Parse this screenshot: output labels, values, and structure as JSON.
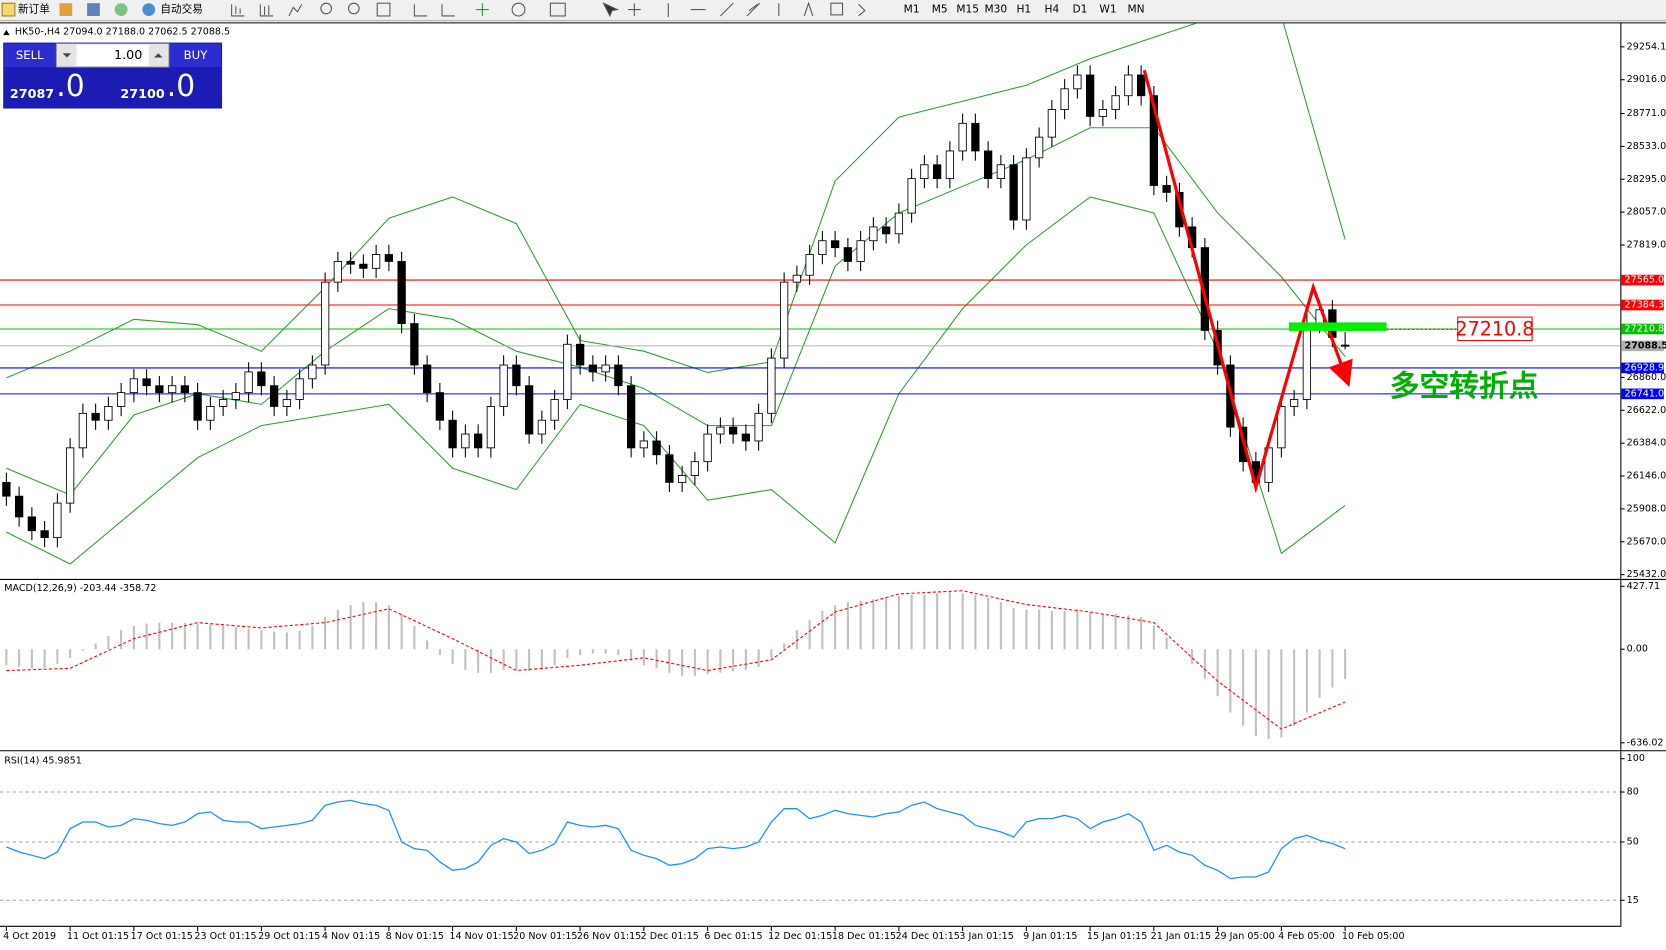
{
  "toolbar": {
    "new_order": "新订单",
    "auto_trading": "自动交易",
    "timeframes": [
      "M1",
      "M5",
      "M15",
      "M30",
      "H1",
      "H4",
      "D1",
      "W1",
      "MN"
    ]
  },
  "trade_panel": {
    "sell": "SELL",
    "buy": "BUY",
    "lots": "1.00",
    "sell_price": "27087",
    "sell_price_big": ".0",
    "buy_price": "27100",
    "buy_price_big": ".0"
  },
  "chart_data": [
    {
      "type": "candlestick",
      "title": "HK50-,H4  27094.0 27188.0 27062.5 27088.5",
      "annotation": "多空转折点",
      "xlim": [
        0,
        105
      ],
      "xticks": [
        {
          "value": 0,
          "label": "4 Oct 2019"
        },
        {
          "value": 5,
          "label": "11 Oct 01:15"
        },
        {
          "value": 10,
          "label": "17 Oct 01:15"
        },
        {
          "value": 15,
          "label": "23 Oct 01:15"
        },
        {
          "value": 20,
          "label": "29 Oct 01:15"
        },
        {
          "value": 25,
          "label": "4 Nov 01:15"
        },
        {
          "value": 30,
          "label": "8 Nov 01:15"
        },
        {
          "value": 35,
          "label": "14 Nov 01:15"
        },
        {
          "value": 40,
          "label": "20 Nov 01:15"
        },
        {
          "value": 45,
          "label": "26 Nov 01:15"
        },
        {
          "value": 50,
          "label": "2 Dec 01:15"
        },
        {
          "value": 55,
          "label": "6 Dec 01:15"
        },
        {
          "value": 60,
          "label": "12 Dec 01:15"
        },
        {
          "value": 65,
          "label": "18 Dec 01:15"
        },
        {
          "value": 70,
          "label": "24 Dec 01:15"
        },
        {
          "value": 75,
          "label": "3 Jan 01:15"
        },
        {
          "value": 80,
          "label": "9 Jan 01:15"
        },
        {
          "value": 85,
          "label": "15 Jan 01:15"
        },
        {
          "value": 90,
          "label": "21 Jan 01:15"
        },
        {
          "value": 95,
          "label": "29 Jan 05:00"
        },
        {
          "value": 100,
          "label": "4 Feb 05:00"
        },
        {
          "value": 105,
          "label": "10 Feb 05:00"
        }
      ],
      "ylim": [
        25432.0,
        29254.1
      ],
      "yticks": [
        29254.1,
        {
          "value": 29016,
          "label": "29016.0"
        },
        {
          "value": 28771,
          "label": "28771.0"
        },
        {
          "value": 28533,
          "label": "28533.0"
        },
        {
          "value": 28295,
          "label": "28295.0"
        },
        {
          "value": 28057,
          "label": "28057.0"
        },
        {
          "value": 27819,
          "label": "27819.0"
        },
        {
          "value": 26860,
          "label": "26860.0"
        },
        {
          "value": 26622,
          "label": "26622.0"
        },
        {
          "value": 26384,
          "label": "26384.0"
        },
        {
          "value": 26146,
          "label": "26146.0"
        },
        {
          "value": 25908,
          "label": "25908.0"
        },
        {
          "value": 25670,
          "label": "25670.0"
        },
        {
          "value": 25432,
          "label": "25432.0"
        }
      ],
      "up_color": "#ffffff",
      "down_color": "#000000",
      "open": [
        26100,
        26000,
        25850,
        25750,
        25700,
        25950,
        26350,
        26600,
        26550,
        26650,
        26750,
        26850,
        26800,
        26750,
        26800,
        26750,
        26550,
        26650,
        26700,
        26750,
        26900,
        26800,
        26650,
        26700,
        26850,
        26950,
        27550,
        27700,
        27680,
        27650,
        27750,
        27700,
        27250,
        26950,
        26750,
        26550,
        26350,
        26450,
        26350,
        26650,
        26950,
        26800,
        26450,
        26550,
        26700,
        27100,
        26950,
        26900,
        26950,
        26800,
        26350,
        26400,
        26300,
        26100,
        26150,
        26250,
        26450,
        26500,
        26450,
        26400,
        26600,
        27000,
        27550,
        27600,
        27750,
        27850,
        27800,
        27700,
        27850,
        27950,
        27900,
        28050,
        28300,
        28400,
        28300,
        28500,
        28700,
        28500,
        28300,
        28400,
        28000,
        28450,
        28600,
        28800,
        28950,
        29050,
        28750,
        28800,
        28900,
        29050,
        28900,
        28250,
        28200,
        27950,
        27800,
        27200,
        26950,
        26500,
        26250,
        26100,
        26350,
        26650,
        26700,
        27250,
        27350,
        27094.0
      ],
      "high": [
        26170,
        26070,
        25920,
        25820,
        26020,
        26420,
        26670,
        26670,
        26720,
        26820,
        26920,
        26920,
        26870,
        26870,
        26870,
        26820,
        26720,
        26770,
        26820,
        26970,
        26970,
        26870,
        26770,
        26920,
        27020,
        27620,
        27770,
        27770,
        27750,
        27820,
        27820,
        27770,
        27320,
        27020,
        26820,
        26620,
        26520,
        26520,
        26720,
        27020,
        27020,
        26870,
        26620,
        26770,
        27170,
        27170,
        27020,
        27020,
        27020,
        26870,
        26470,
        26470,
        26370,
        26220,
        26320,
        26520,
        26570,
        26570,
        26520,
        26670,
        27070,
        27620,
        27670,
        27820,
        27920,
        27920,
        27870,
        27920,
        28020,
        28020,
        28120,
        28370,
        28470,
        28470,
        28570,
        28770,
        28770,
        28570,
        28470,
        28470,
        28520,
        28670,
        28870,
        29020,
        29120,
        29120,
        28870,
        28970,
        29120,
        29120,
        28970,
        28320,
        28270,
        28020,
        27870,
        27270,
        27020,
        26570,
        26320,
        26420,
        26720,
        26770,
        27320,
        27420,
        27420,
        27188.0
      ],
      "low": [
        25930,
        25780,
        25680,
        25630,
        25630,
        25880,
        26280,
        26480,
        26480,
        26580,
        26680,
        26730,
        26680,
        26680,
        26680,
        26480,
        26480,
        26580,
        26630,
        26680,
        26730,
        26580,
        26580,
        26630,
        26780,
        26880,
        27480,
        27610,
        27580,
        27580,
        27630,
        27180,
        26880,
        26680,
        26480,
        26280,
        26280,
        26280,
        26280,
        26580,
        26730,
        26380,
        26380,
        26480,
        26630,
        26880,
        26830,
        26830,
        26730,
        26280,
        26280,
        26230,
        26030,
        26030,
        26080,
        26180,
        26380,
        26380,
        26330,
        26330,
        26530,
        26930,
        27480,
        27530,
        27680,
        27730,
        27630,
        27630,
        27780,
        27830,
        27830,
        27980,
        28230,
        28230,
        28230,
        28430,
        28430,
        28230,
        28230,
        27930,
        27930,
        28380,
        28530,
        28730,
        28880,
        28680,
        28680,
        28730,
        28830,
        28830,
        28180,
        28130,
        27880,
        27730,
        27130,
        26880,
        26430,
        26180,
        26030,
        26030,
        26280,
        26580,
        26630,
        27180,
        27080,
        27062.5
      ],
      "close": [
        26000,
        25850,
        25750,
        25700,
        25950,
        26350,
        26600,
        26550,
        26650,
        26750,
        26850,
        26800,
        26750,
        26800,
        26750,
        26550,
        26650,
        26700,
        26750,
        26900,
        26800,
        26650,
        26700,
        26850,
        26950,
        27550,
        27700,
        27680,
        27650,
        27750,
        27700,
        27250,
        26950,
        26750,
        26550,
        26350,
        26450,
        26350,
        26650,
        26950,
        26800,
        26450,
        26550,
        26700,
        27100,
        26950,
        26900,
        26950,
        26800,
        26350,
        26400,
        26300,
        26100,
        26150,
        26250,
        26450,
        26500,
        26450,
        26400,
        26600,
        27000,
        27550,
        27600,
        27750,
        27850,
        27800,
        27700,
        27850,
        27950,
        27900,
        28050,
        28300,
        28400,
        28300,
        28500,
        28700,
        28500,
        28300,
        28400,
        28000,
        28450,
        28600,
        28800,
        28950,
        29050,
        28750,
        28800,
        28900,
        29050,
        28900,
        28250,
        28200,
        27950,
        27800,
        27200,
        26950,
        26500,
        26250,
        26100,
        26350,
        26650,
        26700,
        27250,
        27350,
        27150,
        27088.5
      ],
      "bands": {
        "color": "#2ca02c",
        "x": [
          0,
          5,
          10,
          15,
          20,
          25,
          30,
          35,
          40,
          45,
          50,
          55,
          60,
          65,
          70,
          75,
          80,
          85,
          90,
          95,
          100,
          105
        ],
        "upper": [
          26857,
          27050,
          27281,
          27242,
          27050,
          27512,
          28013,
          28167,
          27974,
          27127,
          27050,
          26896,
          26973,
          28282,
          28745,
          28860,
          28976,
          29168,
          29323,
          29477,
          29477,
          27859
        ],
        "middle": [
          26202,
          26010,
          26588,
          26742,
          26665,
          27050,
          27358,
          27281,
          27050,
          26934,
          26780,
          26511,
          26511,
          27666,
          28051,
          28244,
          28437,
          28668,
          28668,
          28051,
          27589,
          27011
        ],
        "lower": [
          25740,
          25509,
          25894,
          26279,
          26511,
          26588,
          26665,
          26202,
          26048,
          26665,
          26511,
          25971,
          26048,
          25663,
          26742,
          27358,
          27820,
          28167,
          28051,
          27050,
          25586,
          25933
        ]
      },
      "lines": [
        {
          "value": 27565,
          "label": "27565.0",
          "color": "#ff0000"
        },
        {
          "value": 27384.3,
          "color": "#ff0000"
        },
        {
          "value": 27210.8,
          "color": "#00c000"
        },
        {
          "value": 27088.5,
          "color": "#b0b0b0"
        },
        {
          "value": 26928.9,
          "color": "#0000ff"
        },
        {
          "value": 26741,
          "label": "26741.0",
          "color": "#0000ff"
        }
      ]
    },
    {
      "type": "macd",
      "title": "MACD(12,26,9) -203.44 -358.72",
      "xlim": [
        0,
        105
      ],
      "ylim": [
        -636.02,
        427.71
      ],
      "yticks": [
        427.71,
        {
          "value": 0,
          "label": "0.00"
        },
        -636.02
      ],
      "histogram_color": "#c0c0c0",
      "histogram": [
        -110,
        -120,
        -130,
        -125,
        -100,
        -60,
        -10,
        40,
        90,
        130,
        160,
        175,
        180,
        180,
        180,
        175,
        170,
        160,
        150,
        140,
        130,
        120,
        115,
        125,
        160,
        220,
        270,
        300,
        320,
        320,
        300,
        240,
        160,
        60,
        -40,
        -100,
        -140,
        -160,
        -160,
        -140,
        -140,
        -150,
        -140,
        -110,
        -60,
        -40,
        -30,
        -30,
        -40,
        -80,
        -110,
        -130,
        -160,
        -180,
        -180,
        -170,
        -160,
        -150,
        -140,
        -120,
        -60,
        40,
        130,
        200,
        260,
        300,
        320,
        330,
        340,
        350,
        360,
        370,
        370,
        380,
        390,
        380,
        370,
        350,
        320,
        280,
        270,
        270,
        260,
        260,
        270,
        250,
        240,
        240,
        230,
        220,
        160,
        80,
        0,
        -100,
        -200,
        -320,
        -430,
        -520,
        -590,
        -610,
        -600,
        -520,
        -430,
        -330,
        -260,
        -203.44
      ],
      "signal": {
        "color": "#ff0000",
        "x": [
          0,
          5,
          10,
          15,
          20,
          25,
          30,
          35,
          40,
          45,
          50,
          55,
          60,
          65,
          70,
          75,
          80,
          85,
          90,
          95,
          100,
          105
        ],
        "values": [
          -145,
          -130,
          72,
          181,
          145,
          181,
          275,
          72,
          -145,
          -109,
          -58,
          -145,
          -72,
          253,
          376,
          398,
          304,
          253,
          181,
          -217,
          -543,
          -358.72
        ]
      }
    },
    {
      "type": "line",
      "title": "RSI(14) 45.9851",
      "xlim": [
        0,
        105
      ],
      "ylim": [
        0,
        100
      ],
      "yticks": [
        100,
        80,
        50,
        15
      ],
      "color": "#1e90ff",
      "values": [
        47,
        44,
        42,
        40,
        44,
        58,
        62,
        62,
        59,
        60,
        64,
        63,
        61,
        60,
        62,
        67,
        68,
        63,
        62,
        62,
        58,
        59,
        60,
        61,
        63,
        72,
        74,
        75,
        73,
        72,
        69,
        50,
        46,
        45,
        38,
        33,
        34,
        38,
        48,
        52,
        50,
        43,
        45,
        49,
        62,
        60,
        59,
        60,
        58,
        45,
        42,
        40,
        36,
        37,
        40,
        46,
        47,
        46,
        47,
        50,
        62,
        70,
        70,
        64,
        66,
        69,
        67,
        66,
        65,
        67,
        68,
        72,
        74,
        70,
        68,
        66,
        60,
        58,
        56,
        53,
        62,
        64,
        64,
        66,
        64,
        58,
        62,
        64,
        67,
        62,
        45,
        48,
        44,
        42,
        36,
        33,
        28,
        29,
        29,
        32,
        46,
        52,
        54,
        51,
        49,
        45.9851
      ]
    }
  ]
}
